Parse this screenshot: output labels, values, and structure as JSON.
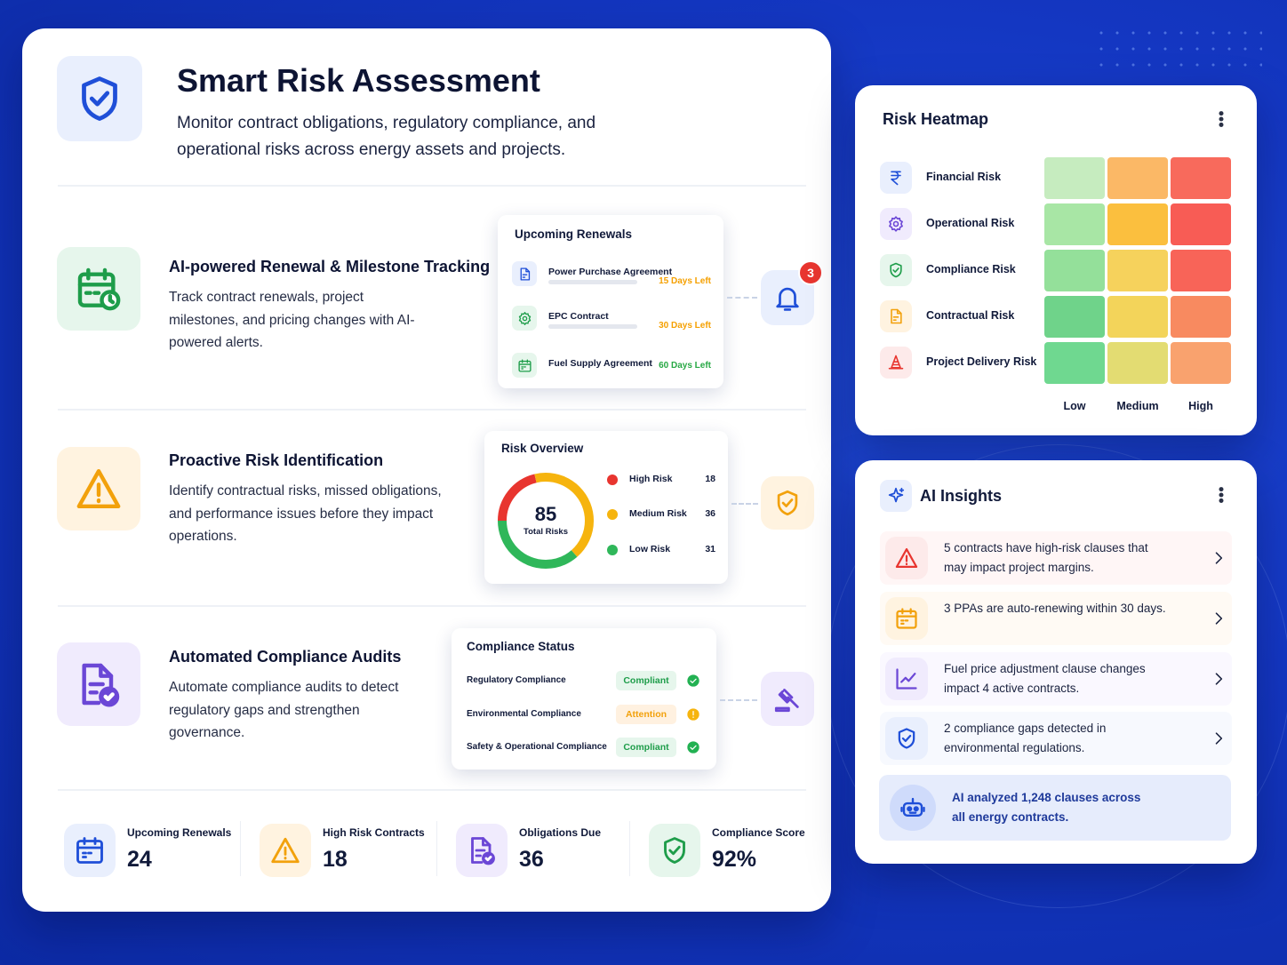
{
  "header": {
    "title": "Smart Risk Assessment",
    "subtitle": "Monitor contract obligations, regulatory compliance, and operational risks across energy assets and projects."
  },
  "features": [
    {
      "title": "AI-powered Renewal & Milestone Tracking",
      "description": "Track contract renewals, project milestones, and pricing changes with AI-powered alerts."
    },
    {
      "title": "Proactive Risk Identification",
      "description": "Identify contractual risks, missed obligations, and performance issues before they impact operations."
    },
    {
      "title": "Automated Compliance Audits",
      "description": "Automate compliance audits to detect regulatory gaps and strengthen governance."
    }
  ],
  "renewals": {
    "title": "Upcoming Renewals",
    "notification_count": 3,
    "items": [
      {
        "name": "Power Purchase Agreement",
        "due": "15 Days Left",
        "color": "#f5a000"
      },
      {
        "name": "EPC Contract",
        "due": "30 Days Left",
        "color": "#f5a000"
      },
      {
        "name": "Fuel Supply Agreement",
        "due": "60 Days Left",
        "color": "#27a844"
      }
    ]
  },
  "risk_overview": {
    "title": "Risk Overview",
    "total": 85,
    "total_label": "Total Risks",
    "items": [
      {
        "name": "High Risk",
        "value": 18,
        "color": "#e8352f"
      },
      {
        "name": "Medium Risk",
        "value": 36,
        "color": "#f6b40e"
      },
      {
        "name": "Low Risk",
        "value": 31,
        "color": "#2fb75a"
      }
    ]
  },
  "compliance_status": {
    "title": "Compliance Status",
    "items": [
      {
        "name": "Regulatory Compliance",
        "status": "Compliant"
      },
      {
        "name": "Environmental Compliance",
        "status": "Attention"
      },
      {
        "name": "Safety & Operational Compliance",
        "status": "Compliant"
      }
    ]
  },
  "stats": [
    {
      "label": "Upcoming Renewals",
      "value": 24
    },
    {
      "label": "High Risk Contracts",
      "value": 18
    },
    {
      "label": "Obligations Due",
      "value": 36
    },
    {
      "label": "Compliance Score",
      "value": "92%"
    }
  ],
  "heatmap": {
    "title": "Risk Heatmap",
    "rows": [
      "Financial Risk",
      "Operational Risk",
      "Compliance Risk",
      "Contractual Risk",
      "Project Delivery Risk"
    ],
    "columns": [
      "Low",
      "Medium",
      "High"
    ],
    "colors": [
      [
        "#c6ecbf",
        "#fbb866",
        "#f86a5c"
      ],
      [
        "#a8e6a5",
        "#fbbf3e",
        "#f85c55"
      ],
      [
        "#94e09a",
        "#f6d25c",
        "#f86458"
      ],
      [
        "#6fd38a",
        "#f3d45a",
        "#f88a60"
      ],
      [
        "#6fd890",
        "#e3dc72",
        "#f9a26e"
      ]
    ]
  },
  "insights": {
    "title": "AI Insights",
    "items": [
      "5 contracts have high-risk clauses that may impact project margins.",
      "3 PPAs are auto-renewing within 30 days.",
      "Fuel price adjustment clause changes impact 4 active contracts.",
      "2 compliance gaps detected in environmental regulations."
    ],
    "summary": "AI analyzed 1,248 clauses across all energy contracts."
  }
}
